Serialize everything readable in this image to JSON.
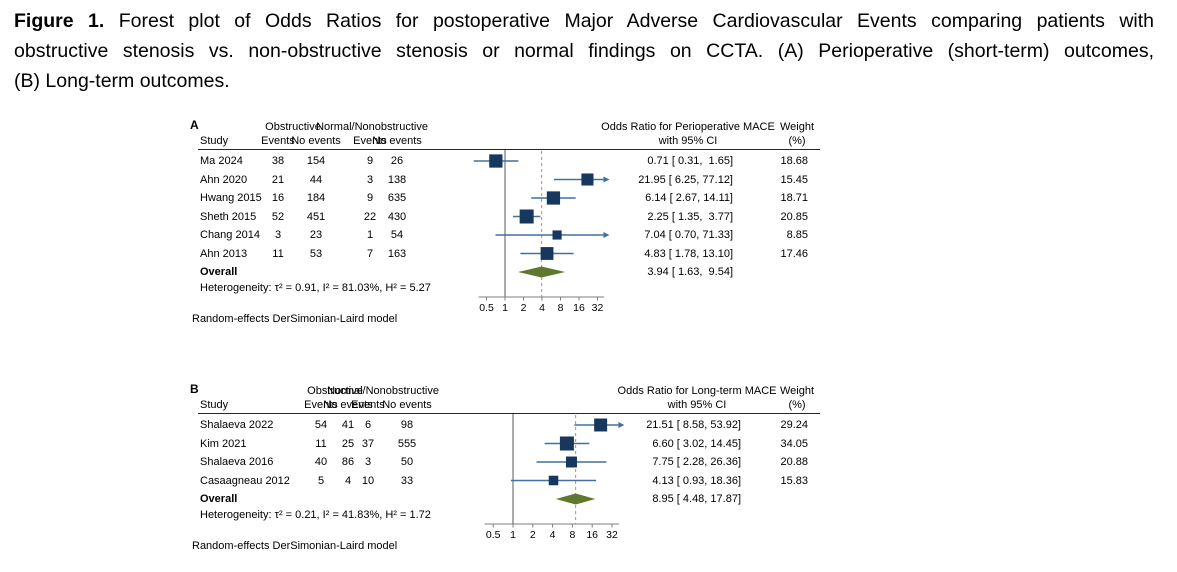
{
  "caption": {
    "label": "Figure 1.",
    "line1": "Forest plot of Odds Ratios for postoperative Major Adverse Cardiovascular Events comparing patients with",
    "line2": "obstructive stenosis vs. non-obstructive stenosis or normal findings on CCTA. (A) Perioperative (short-term) outcomes,",
    "line3": "(B) Long-term outcomes."
  },
  "colors": {
    "marker": "#17375e",
    "ci_line": "#41719c",
    "diamond": "#5f782d",
    "ref_line": "#f07f7f",
    "null_line": "#595959",
    "axis": "#7f7f7f"
  },
  "chart_data": [
    {
      "type": "forest",
      "panel": "A",
      "study_header": "Study",
      "group1": "Obstructive",
      "group2": "Normal/Nonobstructive",
      "subcols": [
        "Events",
        "No events",
        "Events",
        "No events"
      ],
      "or_title": "Odds Ratio for Perioperative MACE",
      "or_subtitle": "with 95% CI",
      "weight_header": "Weight",
      "weight_unit": "(%)",
      "axis_scale": "log2",
      "axis_ticks": [
        "0.5",
        "1",
        "2",
        "4",
        "8",
        "16",
        "32"
      ],
      "null_line": 1,
      "ref_line": 3.94,
      "studies": [
        {
          "name": "Ma 2024",
          "e1": "38",
          "n1": "154",
          "e2": "9",
          "n2": "26",
          "or": 0.71,
          "lo": 0.31,
          "hi": 1.65,
          "or_label": "0.71 [ 0.31,  1.65]",
          "weight": "18.68"
        },
        {
          "name": "Ahn 2020",
          "e1": "21",
          "n1": "44",
          "e2": "3",
          "n2": "138",
          "or": 21.95,
          "lo": 6.25,
          "hi": 77.12,
          "or_label": "21.95 [ 6.25, 77.12]",
          "weight": "15.45"
        },
        {
          "name": "Hwang 2015",
          "e1": "16",
          "n1": "184",
          "e2": "9",
          "n2": "635",
          "or": 6.14,
          "lo": 2.67,
          "hi": 14.11,
          "or_label": "6.14 [ 2.67, 14.11]",
          "weight": "18.71"
        },
        {
          "name": "Sheth 2015",
          "e1": "52",
          "n1": "451",
          "e2": "22",
          "n2": "430",
          "or": 2.25,
          "lo": 1.35,
          "hi": 3.77,
          "or_label": "2.25 [ 1.35,  3.77]",
          "weight": "20.85"
        },
        {
          "name": "Chang 2014",
          "e1": "3",
          "n1": "23",
          "e2": "1",
          "n2": "54",
          "or": 7.04,
          "lo": 0.7,
          "hi": 71.33,
          "or_label": "7.04 [ 0.70, 71.33]",
          "weight": "8.85"
        },
        {
          "name": "Ahn 2013",
          "e1": "11",
          "n1": "53",
          "e2": "7",
          "n2": "163",
          "or": 4.83,
          "lo": 1.78,
          "hi": 13.1,
          "or_label": "4.83 [ 1.78, 13.10]",
          "weight": "17.46"
        }
      ],
      "overall": {
        "label": "Overall",
        "or": 3.94,
        "lo": 1.63,
        "hi": 9.54,
        "or_label": "3.94 [ 1.63,  9.54]"
      },
      "heterogeneity": "Heterogeneity: τ² = 0.91, I² = 81.03%, H² = 5.27",
      "model_note": "Random-effects DerSimonian-Laird model"
    },
    {
      "type": "forest",
      "panel": "B",
      "study_header": "Study",
      "group1": "Obstructive",
      "group2": "Normal/Nonobstructive",
      "subcols": [
        "Events",
        "No events",
        "Events",
        "No events"
      ],
      "or_title": "Odds Ratio for Long-term MACE",
      "or_subtitle": "with 95% CI",
      "weight_header": "Weight",
      "weight_unit": "(%)",
      "axis_scale": "log2",
      "axis_ticks": [
        "0.5",
        "1",
        "2",
        "4",
        "8",
        "16",
        "32"
      ],
      "null_line": 1,
      "ref_line": 8.95,
      "studies": [
        {
          "name": "Shalaeva 2022",
          "e1": "54",
          "n1": "41",
          "e2": "6",
          "n2": "98",
          "or": 21.51,
          "lo": 8.58,
          "hi": 53.92,
          "or_label": "21.51 [ 8.58, 53.92]",
          "weight": "29.24"
        },
        {
          "name": "Kim 2021",
          "e1": "11",
          "n1": "25",
          "e2": "37",
          "n2": "555",
          "or": 6.6,
          "lo": 3.02,
          "hi": 14.45,
          "or_label": "6.60 [ 3.02, 14.45]",
          "weight": "34.05"
        },
        {
          "name": "Shalaeva 2016",
          "e1": "40",
          "n1": "86",
          "e2": "3",
          "n2": "50",
          "or": 7.75,
          "lo": 2.28,
          "hi": 26.36,
          "or_label": "7.75 [ 2.28, 26.36]",
          "weight": "20.88"
        },
        {
          "name": "Casaagneau 2012",
          "e1": "5",
          "n1": "4",
          "e2": "10",
          "n2": "33",
          "or": 4.13,
          "lo": 0.93,
          "hi": 18.36,
          "or_label": "4.13 [ 0.93, 18.36]",
          "weight": "15.83"
        }
      ],
      "overall": {
        "label": "Overall",
        "or": 8.95,
        "lo": 4.48,
        "hi": 17.87,
        "or_label": "8.95 [ 4.48, 17.87]"
      },
      "heterogeneity": "Heterogeneity: τ² = 0.21, I² = 41.83%, H² = 1.72",
      "model_note": "Random-effects DerSimonian-Laird model"
    }
  ]
}
